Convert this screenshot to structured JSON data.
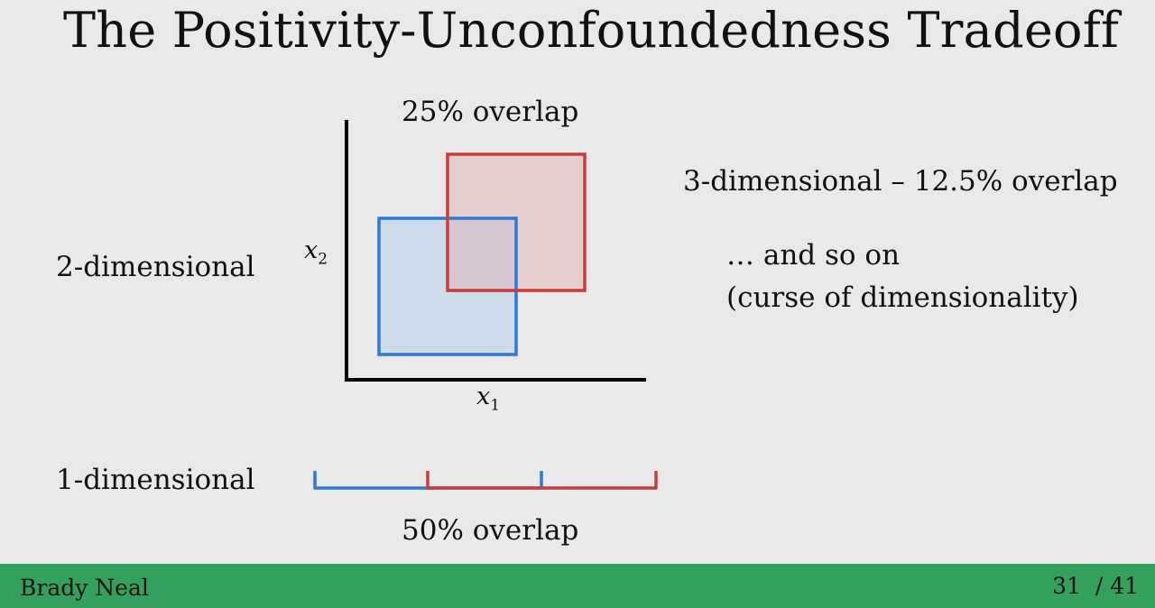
{
  "slide": {
    "title": "The Positivity-Unconfoundedness Tradeoff",
    "two_d_label": "2-dimensional",
    "one_d_label": "1-dimensional",
    "overlap_2d": "25% overlap",
    "overlap_1d": "50% overlap",
    "three_d_label": "3-dimensional – 12.5% overlap",
    "so_on": "… and so on",
    "curse": "(curse of dimensionality)",
    "axis_x_var": "x",
    "axis_x_sub": "1",
    "axis_y_var": "x",
    "axis_y_sub": "2"
  },
  "colors": {
    "blue": "#2f78d6",
    "red": "#cc3b3b",
    "blue_fill": "#cddcea",
    "red_fill": "#e4cece",
    "overlap_fill": "#d6c6d2",
    "footer": "#33a05e"
  },
  "footer": {
    "author": "Brady Neal",
    "page_current": "31",
    "page_total": "41"
  }
}
